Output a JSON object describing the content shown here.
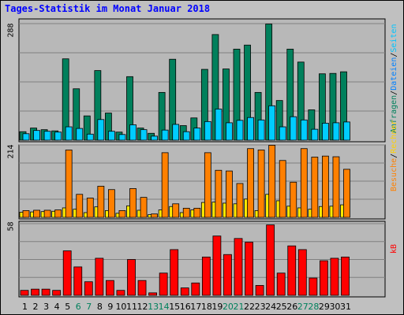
{
  "chart_data": {
    "type": "bar",
    "title": "Tages-Statistik im Monat Januar 2018",
    "categories": [
      "1",
      "2",
      "3",
      "4",
      "5",
      "6",
      "7",
      "8",
      "9",
      "10",
      "11",
      "12",
      "13",
      "14",
      "15",
      "16",
      "17",
      "18",
      "19",
      "20",
      "21",
      "22",
      "23",
      "24",
      "25",
      "26",
      "27",
      "28",
      "29",
      "30",
      "31"
    ],
    "weekend_days": [
      "6",
      "7",
      "13",
      "14",
      "20",
      "21",
      "27",
      "28"
    ],
    "grid": true,
    "panels": [
      {
        "ymax_label": "288",
        "ylim": [
          0,
          288
        ],
        "series": [
          {
            "name": "Anfragen",
            "color": "#00805c",
            "values": [
              21,
              30,
              26,
              23,
              201,
              127,
              60,
              172,
              67,
              20,
              157,
              30,
              17,
              118,
              200,
              36,
              55,
              175,
              261,
              176,
              225,
              235,
              118,
              287,
              98,
              225,
              193,
              75,
              164,
              165,
              169
            ]
          },
          {
            "name": "Dateien",
            "color": "#00ccff",
            "values": [
              16,
              24,
              22,
              20,
              33,
              29,
              15,
              51,
              22,
              14,
              38,
              26,
              10,
              25,
              39,
              21,
              30,
              46,
              77,
              43,
              49,
              56,
              50,
              85,
              33,
              58,
              50,
              27,
              42,
              43,
              45
            ]
          },
          {
            "name": "Seiten",
            "color": "#00c4ff",
            "values": []
          }
        ],
        "labels_right": {
          "a": "Anfragen",
          "sep1": "/",
          "b": "Dateien",
          "sep2": "/",
          "c": "Seiten"
        }
      },
      {
        "ymax_label": "214",
        "ylim": [
          0,
          214
        ],
        "series": [
          {
            "name": "Besuche",
            "color": "#ff8000",
            "values": [
              20,
              21,
              21,
              22,
              199,
              68,
              57,
              92,
              82,
              20,
              85,
              59,
              10,
              191,
              40,
              27,
              27,
              191,
              139,
              137,
              100,
              203,
              199,
              213,
              168,
              104,
              203,
              178,
              181,
              179,
              142
            ]
          },
          {
            "name": "Rechner",
            "color": "#ffea00",
            "values": [
              15,
              16,
              17,
              18,
              28,
              24,
              14,
              31,
              20,
              12,
              34,
              21,
              8,
              22,
              32,
              14,
              22,
              44,
              45,
              42,
              40,
              54,
              20,
              68,
              49,
              33,
              28,
              24,
              32,
              33,
              37
            ]
          }
        ],
        "labels_right": {
          "a": "Besuche",
          "sep1": "/",
          "b": "Rechner"
        }
      },
      {
        "ymax_label": "58",
        "ylim": [
          0,
          58
        ],
        "series": [
          {
            "name": "kB",
            "color": "#ff0000",
            "values": [
              4,
              5,
              5,
              4,
              36,
              23,
              11,
              30,
              12,
              4,
              29,
              12,
              2,
              18,
              37,
              6,
              10,
              31,
              48,
              33,
              46,
              43,
              8,
              57,
              18,
              40,
              37,
              14,
              28,
              30,
              31
            ]
          }
        ],
        "labels_right": {
          "a": "kB"
        }
      }
    ]
  },
  "colors": {
    "background": "#c0c0c0",
    "panel_bg": "#b8b8b8",
    "grid": "#808080",
    "title": "#0000ff",
    "weekday_label": "#000000",
    "weekend_label": "#00805c"
  }
}
